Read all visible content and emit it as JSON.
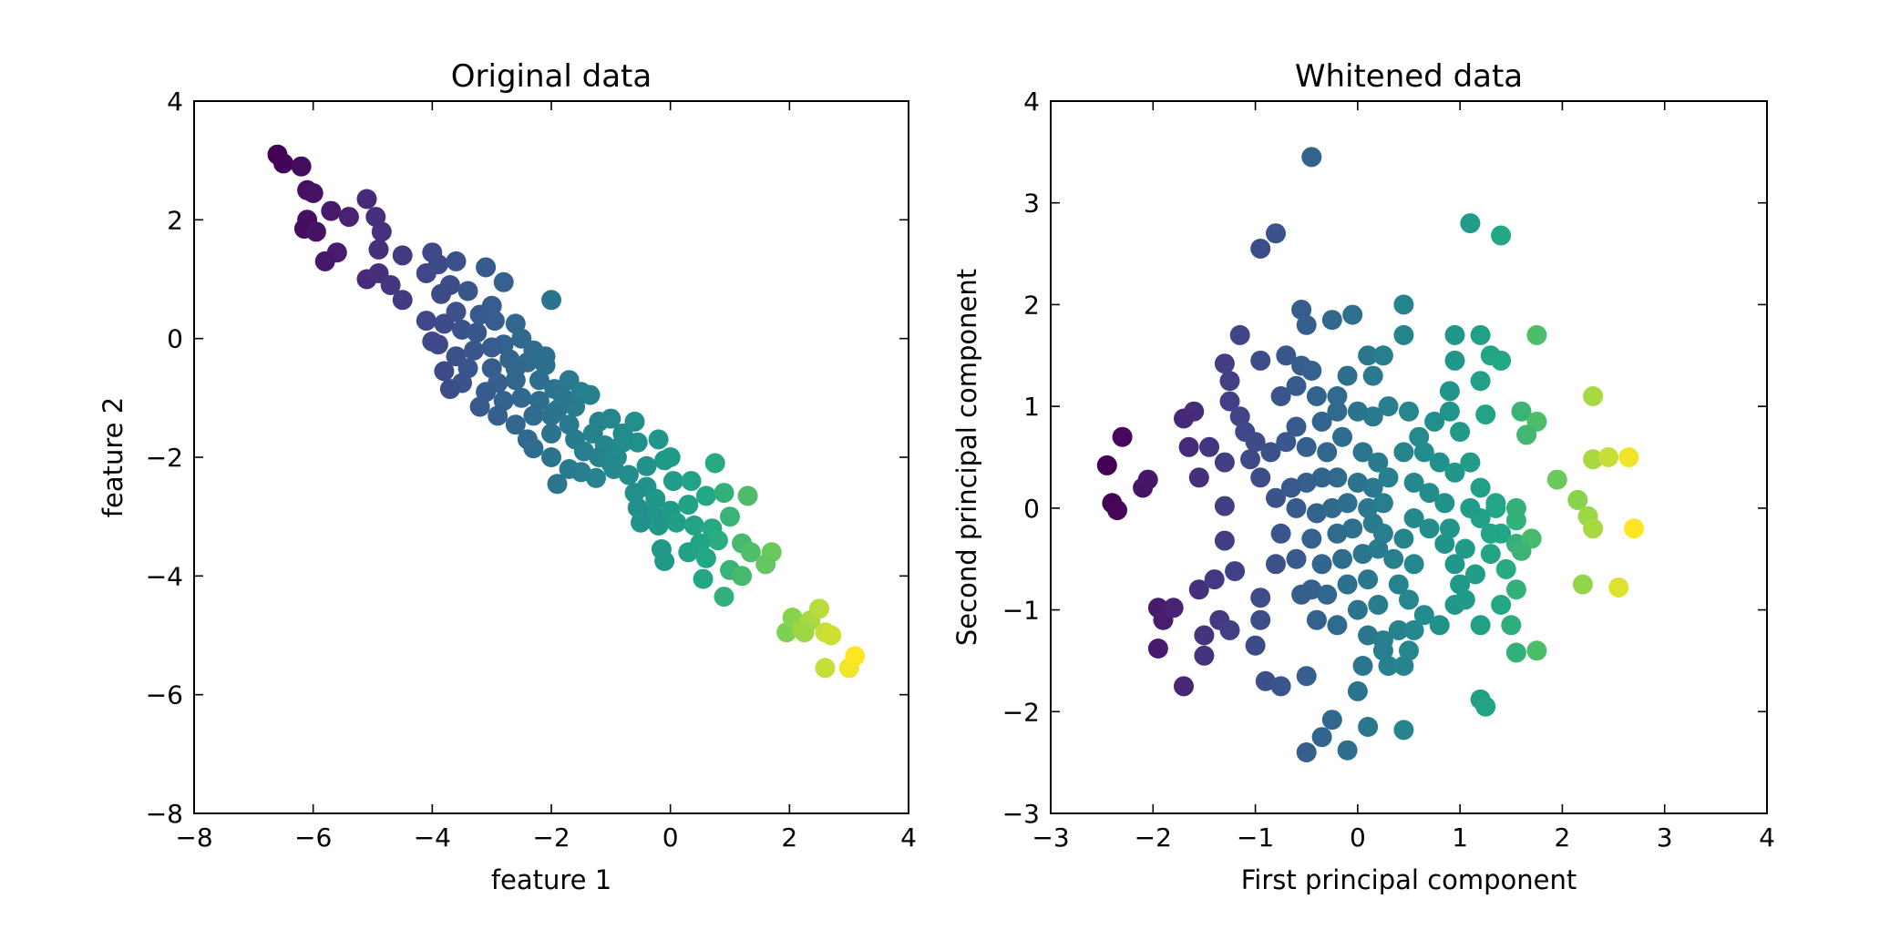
{
  "chart_data": [
    {
      "type": "scatter",
      "title": "Original data",
      "xlabel": "feature 1",
      "ylabel": "feature 2",
      "xlim": [
        -8,
        4
      ],
      "ylim": [
        -8,
        4
      ],
      "xticks": [
        -8,
        -6,
        -4,
        -2,
        0,
        2,
        4
      ],
      "yticks": [
        -8,
        -6,
        -4,
        -2,
        0,
        2,
        4
      ],
      "xtick_labels": [
        "−8",
        "−6",
        "−4",
        "−2",
        "0",
        "2",
        "4"
      ],
      "ytick_labels": [
        "−8",
        "−6",
        "−4",
        "−2",
        "0",
        "2",
        "4"
      ],
      "colormap": "viridis",
      "grid": false,
      "points": [
        [
          -6.6,
          3.1
        ],
        [
          -6.5,
          2.95
        ],
        [
          -6.2,
          2.9
        ],
        [
          -6.1,
          2.5
        ],
        [
          -6.0,
          2.45
        ],
        [
          -5.7,
          2.15
        ],
        [
          -6.1,
          2.0
        ],
        [
          -6.15,
          1.85
        ],
        [
          -5.95,
          1.8
        ],
        [
          -5.4,
          2.05
        ],
        [
          -5.1,
          2.35
        ],
        [
          -4.95,
          2.05
        ],
        [
          -4.85,
          1.8
        ],
        [
          -4.9,
          1.5
        ],
        [
          -5.6,
          1.45
        ],
        [
          -5.8,
          1.3
        ],
        [
          -5.1,
          1.0
        ],
        [
          -4.9,
          1.1
        ],
        [
          -4.5,
          1.4
        ],
        [
          -4.7,
          0.9
        ],
        [
          -4.5,
          0.65
        ],
        [
          -4.1,
          1.1
        ],
        [
          -4.0,
          1.45
        ],
        [
          -3.9,
          1.25
        ],
        [
          -3.6,
          1.3
        ],
        [
          -3.7,
          0.9
        ],
        [
          -3.85,
          0.75
        ],
        [
          -3.4,
          0.8
        ],
        [
          -3.1,
          1.2
        ],
        [
          -2.8,
          0.95
        ],
        [
          -3.0,
          0.55
        ],
        [
          -3.2,
          0.4
        ],
        [
          -3.6,
          0.45
        ],
        [
          -4.1,
          0.3
        ],
        [
          -3.8,
          0.25
        ],
        [
          -3.5,
          0.15
        ],
        [
          -3.25,
          0.1
        ],
        [
          -2.95,
          0.3
        ],
        [
          -2.6,
          0.25
        ],
        [
          -2.5,
          0.0
        ],
        [
          -2.8,
          -0.1
        ],
        [
          -3.0,
          -0.15
        ],
        [
          -3.3,
          -0.2
        ],
        [
          -3.6,
          -0.3
        ],
        [
          -3.9,
          -0.1
        ],
        [
          -4.0,
          -0.05
        ],
        [
          -3.8,
          -0.55
        ],
        [
          -3.4,
          -0.5
        ],
        [
          -3.0,
          -0.5
        ],
        [
          -2.7,
          -0.35
        ],
        [
          -2.4,
          -0.4
        ],
        [
          -2.1,
          -0.45
        ],
        [
          -2.2,
          -0.7
        ],
        [
          -2.6,
          -0.7
        ],
        [
          -2.9,
          -0.75
        ],
        [
          -3.1,
          -0.9
        ],
        [
          -3.5,
          -0.75
        ],
        [
          -3.7,
          -0.85
        ],
        [
          -3.2,
          -1.15
        ],
        [
          -2.8,
          -1.05
        ],
        [
          -2.5,
          -1.0
        ],
        [
          -2.2,
          -1.05
        ],
        [
          -1.95,
          -0.85
        ],
        [
          -1.7,
          -0.7
        ],
        [
          -1.5,
          -0.9
        ],
        [
          -1.35,
          -0.95
        ],
        [
          -1.6,
          -1.15
        ],
        [
          -1.9,
          -1.2
        ],
        [
          -2.3,
          -1.3
        ],
        [
          -2.6,
          -1.45
        ],
        [
          -2.9,
          -1.3
        ],
        [
          -2.4,
          -1.7
        ],
        [
          -2.0,
          -1.6
        ],
        [
          -1.7,
          -1.45
        ],
        [
          -1.6,
          -1.7
        ],
        [
          -1.3,
          -1.6
        ],
        [
          -1.1,
          -1.8
        ],
        [
          -0.8,
          -1.6
        ],
        [
          -0.6,
          -1.4
        ],
        [
          -0.55,
          -1.75
        ],
        [
          -0.9,
          -2.0
        ],
        [
          -1.2,
          -2.0
        ],
        [
          -1.45,
          -1.9
        ],
        [
          -1.7,
          -2.2
        ],
        [
          -2.0,
          -2.0
        ],
        [
          -2.3,
          -1.85
        ],
        [
          -1.9,
          -2.45
        ],
        [
          -1.5,
          -2.25
        ],
        [
          -1.25,
          -2.35
        ],
        [
          -0.95,
          -2.2
        ],
        [
          -0.7,
          -2.3
        ],
        [
          -0.4,
          -2.15
        ],
        [
          -0.1,
          -2.05
        ],
        [
          -0.4,
          -2.5
        ],
        [
          -0.6,
          -2.6
        ],
        [
          -0.25,
          -2.7
        ],
        [
          0.05,
          -2.4
        ],
        [
          0.35,
          -2.4
        ],
        [
          0.6,
          -2.65
        ],
        [
          0.3,
          -2.8
        ],
        [
          0.0,
          -2.9
        ],
        [
          -0.3,
          -2.95
        ],
        [
          -0.55,
          -2.85
        ],
        [
          -0.5,
          -3.1
        ],
        [
          -0.2,
          -3.15
        ],
        [
          0.1,
          -3.1
        ],
        [
          0.4,
          -3.15
        ],
        [
          0.7,
          -3.2
        ],
        [
          1.0,
          -3.0
        ],
        [
          0.9,
          -2.6
        ],
        [
          1.3,
          -2.65
        ],
        [
          1.2,
          -3.45
        ],
        [
          0.8,
          -3.4
        ],
        [
          0.5,
          -3.45
        ],
        [
          0.3,
          -3.6
        ],
        [
          0.6,
          -3.7
        ],
        [
          1.0,
          -3.9
        ],
        [
          1.35,
          -3.6
        ],
        [
          1.7,
          -3.6
        ],
        [
          1.6,
          -3.8
        ],
        [
          1.2,
          -4.0
        ],
        [
          0.9,
          -4.35
        ],
        [
          0.55,
          -4.05
        ],
        [
          -0.15,
          -3.55
        ],
        [
          -0.1,
          -3.75
        ],
        [
          0.75,
          -2.1
        ],
        [
          -2.0,
          0.65
        ],
        [
          -2.3,
          -0.2
        ],
        [
          -2.1,
          -0.3
        ],
        [
          -2.6,
          -0.5
        ],
        [
          -2.0,
          -1.3
        ],
        [
          -1.2,
          -1.4
        ],
        [
          -1.8,
          -1.0
        ],
        [
          -1.0,
          -1.35
        ],
        [
          -0.2,
          -1.7
        ],
        [
          0.0,
          -2.0
        ],
        [
          -0.8,
          -1.75
        ],
        [
          -1.0,
          -2.1
        ],
        [
          1.95,
          -4.95
        ],
        [
          2.05,
          -4.7
        ],
        [
          2.2,
          -4.9
        ],
        [
          2.35,
          -4.75
        ],
        [
          2.5,
          -4.55
        ],
        [
          2.25,
          -4.95
        ],
        [
          2.6,
          -4.95
        ],
        [
          2.7,
          -5.0
        ],
        [
          2.6,
          -5.55
        ],
        [
          3.0,
          -5.55
        ],
        [
          3.1,
          -5.35
        ]
      ]
    },
    {
      "type": "scatter",
      "title": "Whitened data",
      "xlabel": "First principal component",
      "ylabel": "Second principal component",
      "xlim": [
        -3,
        4
      ],
      "ylim": [
        -3,
        4
      ],
      "xticks": [
        -3,
        -2,
        -1,
        0,
        1,
        2,
        3,
        4
      ],
      "yticks": [
        -3,
        -2,
        -1,
        0,
        1,
        2,
        3,
        4
      ],
      "xtick_labels": [
        "−3",
        "−2",
        "−1",
        "0",
        "1",
        "2",
        "3",
        "4"
      ],
      "ytick_labels": [
        "−3",
        "−2",
        "−1",
        "0",
        "1",
        "2",
        "3",
        "4"
      ],
      "colormap": "viridis",
      "grid": false,
      "points": [
        [
          -2.45,
          0.42
        ],
        [
          -2.3,
          0.7
        ],
        [
          -2.4,
          0.05
        ],
        [
          -2.35,
          -0.02
        ],
        [
          -2.1,
          0.2
        ],
        [
          -2.05,
          0.28
        ],
        [
          -1.95,
          -0.98
        ],
        [
          -1.9,
          -1.1
        ],
        [
          -1.95,
          -1.38
        ],
        [
          -1.8,
          -0.98
        ],
        [
          -1.7,
          -1.75
        ],
        [
          -1.5,
          -1.45
        ],
        [
          -1.5,
          -1.25
        ],
        [
          -1.35,
          -1.1
        ],
        [
          -1.25,
          -1.2
        ],
        [
          -1.55,
          -0.8
        ],
        [
          -1.4,
          -0.7
        ],
        [
          -1.2,
          -0.62
        ],
        [
          -1.3,
          -0.32
        ],
        [
          -1.3,
          0.02
        ],
        [
          -1.55,
          0.3
        ],
        [
          -1.65,
          0.6
        ],
        [
          -1.45,
          0.6
        ],
        [
          -1.6,
          0.95
        ],
        [
          -1.7,
          0.88
        ],
        [
          -1.3,
          1.42
        ],
        [
          -1.25,
          1.25
        ],
        [
          -1.25,
          1.05
        ],
        [
          -1.15,
          0.9
        ],
        [
          -1.1,
          0.75
        ],
        [
          -1.0,
          0.65
        ],
        [
          -1.3,
          0.45
        ],
        [
          -1.05,
          0.48
        ],
        [
          -0.85,
          0.55
        ],
        [
          -0.95,
          0.3
        ],
        [
          -0.8,
          0.1
        ],
        [
          -0.75,
          -0.25
        ],
        [
          -0.8,
          -0.55
        ],
        [
          -0.95,
          -0.88
        ],
        [
          -0.95,
          -1.1
        ],
        [
          -1.0,
          -1.35
        ],
        [
          -0.9,
          -1.7
        ],
        [
          -0.75,
          -1.75
        ],
        [
          -0.5,
          -1.65
        ],
        [
          -0.5,
          -2.4
        ],
        [
          -0.35,
          -2.25
        ],
        [
          -0.25,
          -2.08
        ],
        [
          -0.1,
          -2.38
        ],
        [
          0.1,
          -2.15
        ],
        [
          0.0,
          -1.8
        ],
        [
          0.45,
          -2.18
        ],
        [
          -0.45,
          3.45
        ],
        [
          -0.95,
          2.55
        ],
        [
          -0.8,
          2.7
        ],
        [
          -0.55,
          1.95
        ],
        [
          -0.5,
          1.8
        ],
        [
          -0.25,
          1.85
        ],
        [
          -0.05,
          1.9
        ],
        [
          -1.15,
          1.7
        ],
        [
          -0.95,
          1.45
        ],
        [
          -0.7,
          1.5
        ],
        [
          -0.55,
          1.4
        ],
        [
          -0.45,
          1.35
        ],
        [
          -0.75,
          1.1
        ],
        [
          -0.6,
          1.2
        ],
        [
          -0.4,
          1.1
        ],
        [
          -0.2,
          1.1
        ],
        [
          -0.1,
          1.3
        ],
        [
          0.1,
          1.5
        ],
        [
          0.25,
          1.5
        ],
        [
          0.15,
          1.3
        ],
        [
          0.3,
          1.0
        ],
        [
          0.15,
          0.9
        ],
        [
          0.0,
          0.95
        ],
        [
          -0.2,
          0.95
        ],
        [
          -0.35,
          0.85
        ],
        [
          -0.6,
          0.8
        ],
        [
          -0.7,
          0.65
        ],
        [
          -0.5,
          0.6
        ],
        [
          -0.3,
          0.55
        ],
        [
          -0.15,
          0.7
        ],
        [
          0.05,
          0.55
        ],
        [
          0.2,
          0.45
        ],
        [
          0.3,
          0.3
        ],
        [
          0.15,
          0.2
        ],
        [
          0.0,
          0.25
        ],
        [
          -0.2,
          0.3
        ],
        [
          -0.35,
          0.3
        ],
        [
          -0.5,
          0.25
        ],
        [
          -0.65,
          0.2
        ],
        [
          -0.6,
          0.0
        ],
        [
          -0.4,
          -0.05
        ],
        [
          -0.25,
          0.0
        ],
        [
          -0.1,
          0.05
        ],
        [
          0.1,
          0.0
        ],
        [
          0.25,
          0.05
        ],
        [
          0.15,
          -0.15
        ],
        [
          -0.05,
          -0.2
        ],
        [
          -0.2,
          -0.25
        ],
        [
          -0.45,
          -0.3
        ],
        [
          -0.6,
          -0.5
        ],
        [
          -0.35,
          -0.55
        ],
        [
          -0.15,
          -0.5
        ],
        [
          0.05,
          -0.45
        ],
        [
          0.2,
          -0.4
        ],
        [
          -0.45,
          -0.8
        ],
        [
          -0.3,
          -0.85
        ],
        [
          -0.1,
          -0.75
        ],
        [
          0.1,
          -0.7
        ],
        [
          -0.55,
          -0.85
        ],
        [
          -0.4,
          -1.1
        ],
        [
          -0.2,
          -1.15
        ],
        [
          0.0,
          -1.0
        ],
        [
          0.2,
          -0.95
        ],
        [
          0.1,
          -1.25
        ],
        [
          0.25,
          -1.3
        ],
        [
          0.4,
          -1.2
        ],
        [
          0.5,
          -1.4
        ],
        [
          0.3,
          -1.55
        ],
        [
          0.05,
          -1.55
        ],
        [
          0.25,
          -1.4
        ],
        [
          0.45,
          -1.55
        ],
        [
          0.55,
          -1.2
        ],
        [
          0.65,
          -1.05
        ],
        [
          0.5,
          -0.9
        ],
        [
          0.4,
          -0.75
        ],
        [
          0.55,
          -0.55
        ],
        [
          0.35,
          -0.5
        ],
        [
          0.25,
          -0.25
        ],
        [
          0.45,
          -0.3
        ],
        [
          0.55,
          -0.1
        ],
        [
          0.7,
          -0.2
        ],
        [
          0.85,
          -0.35
        ],
        [
          0.95,
          -0.55
        ],
        [
          1.0,
          -0.75
        ],
        [
          0.95,
          -0.95
        ],
        [
          0.8,
          -1.15
        ],
        [
          1.2,
          -1.15
        ],
        [
          1.05,
          -0.9
        ],
        [
          1.15,
          -0.65
        ],
        [
          1.05,
          -0.4
        ],
        [
          0.9,
          -0.2
        ],
        [
          0.85,
          0.05
        ],
        [
          0.7,
          0.15
        ],
        [
          0.55,
          0.25
        ],
        [
          0.45,
          0.55
        ],
        [
          0.65,
          0.55
        ],
        [
          0.8,
          0.45
        ],
        [
          0.6,
          0.7
        ],
        [
          0.5,
          0.95
        ],
        [
          0.75,
          0.85
        ],
        [
          0.9,
          0.95
        ],
        [
          1.0,
          0.75
        ],
        [
          0.95,
          0.35
        ],
        [
          1.1,
          0.45
        ],
        [
          1.2,
          0.2
        ],
        [
          1.35,
          0.05
        ],
        [
          1.4,
          -0.25
        ],
        [
          1.3,
          -0.45
        ],
        [
          1.45,
          -0.6
        ],
        [
          1.55,
          -0.8
        ],
        [
          1.4,
          -0.95
        ],
        [
          1.5,
          -1.15
        ],
        [
          1.55,
          -1.42
        ],
        [
          1.75,
          -1.4
        ],
        [
          1.2,
          -1.88
        ],
        [
          1.25,
          -1.95
        ],
        [
          0.45,
          1.7
        ],
        [
          0.45,
          2.0
        ],
        [
          0.95,
          1.7
        ],
        [
          0.95,
          1.45
        ],
        [
          1.2,
          1.7
        ],
        [
          1.3,
          1.5
        ],
        [
          1.4,
          1.45
        ],
        [
          1.2,
          1.25
        ],
        [
          0.9,
          1.15
        ],
        [
          1.25,
          0.92
        ],
        [
          1.1,
          2.8
        ],
        [
          1.4,
          2.68
        ],
        [
          1.75,
          1.7
        ],
        [
          1.6,
          0.95
        ],
        [
          1.75,
          0.85
        ],
        [
          1.65,
          0.72
        ],
        [
          1.95,
          0.28
        ],
        [
          1.55,
          -0.12
        ],
        [
          1.55,
          -0.35
        ],
        [
          1.3,
          -0.25
        ],
        [
          1.2,
          -0.1
        ],
        [
          1.1,
          0.0
        ],
        [
          1.35,
          0.0
        ],
        [
          1.55,
          0.0
        ],
        [
          1.7,
          -0.3
        ],
        [
          1.6,
          -0.42
        ],
        [
          2.3,
          1.1
        ],
        [
          2.3,
          0.48
        ],
        [
          2.45,
          0.5
        ],
        [
          2.65,
          0.5
        ],
        [
          2.15,
          0.08
        ],
        [
          2.25,
          -0.08
        ],
        [
          2.3,
          -0.2
        ],
        [
          2.7,
          -0.2
        ],
        [
          2.2,
          -0.75
        ],
        [
          2.55,
          -0.78
        ]
      ]
    }
  ]
}
